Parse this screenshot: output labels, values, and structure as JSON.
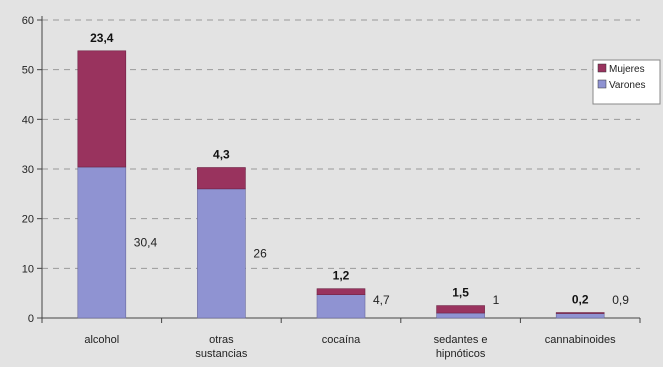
{
  "chart_data": {
    "type": "bar",
    "stacked": true,
    "title": "",
    "xlabel": "",
    "ylabel": "",
    "ylim": [
      0,
      60
    ],
    "yticks": [
      0,
      10,
      20,
      30,
      40,
      50,
      60
    ],
    "grid": true,
    "legend_position": "right",
    "categories": [
      [
        "alcohol"
      ],
      [
        "otras",
        "sustancias"
      ],
      [
        "cocaína"
      ],
      [
        "sedantes e",
        "hipnóticos"
      ],
      [
        "cannabinoides"
      ]
    ],
    "series": [
      {
        "name": "Varones",
        "color": "#8f93d2",
        "values": [
          30.4,
          26,
          4.7,
          1,
          0.9
        ],
        "labels": [
          "30,4",
          "26",
          "4,7",
          "1",
          "0,9"
        ]
      },
      {
        "name": "Mujeres",
        "color": "#99335e",
        "values": [
          23.4,
          4.3,
          1.2,
          1.5,
          0.2
        ],
        "labels": [
          "23,4",
          "4,3",
          "1,2",
          "1,5",
          "0,2"
        ]
      }
    ]
  }
}
